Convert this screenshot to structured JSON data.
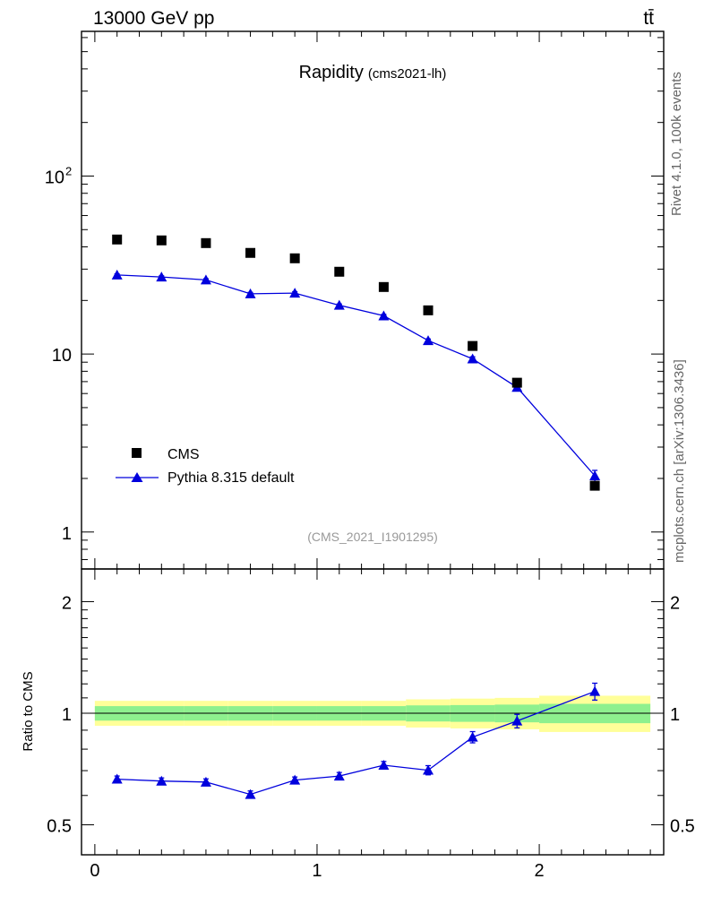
{
  "header": {
    "energy_label": "13000 GeV pp",
    "process_label": "tt̄"
  },
  "side_labels": {
    "rivet": "Rivet 4.1.0,  100k events",
    "source": "mcplots.cern.ch [arXiv:1306.3436]"
  },
  "colors": {
    "cms": "#000000",
    "pythia": "#0000dd",
    "band_inner": "#8ef08e",
    "band_outer": "#ffff99"
  },
  "chart_data": [
    {
      "type": "scatter",
      "panel": "main",
      "title": "Rapidity",
      "subtitle": "(cms2021-lh)",
      "reference": "(CMS_2021_I1901295)",
      "yscale": "log",
      "xlim": [
        -0.06,
        2.56
      ],
      "ylim": [
        0.62,
        650
      ],
      "ytick_labels": [
        {
          "value": 1,
          "label": "1"
        },
        {
          "value": 10,
          "label": "10"
        },
        {
          "value": 100,
          "label": "10",
          "sup": "2"
        }
      ],
      "legend": {
        "position": "bottom-left",
        "entries": [
          "CMS",
          "Pythia 8.315 default"
        ]
      },
      "series": [
        {
          "name": "CMS",
          "style": "markers",
          "x": [
            0.1,
            0.3,
            0.5,
            0.7,
            0.9,
            1.1,
            1.3,
            1.5,
            1.7,
            1.9,
            2.25
          ],
          "y": [
            44.0,
            43.5,
            42.0,
            37.0,
            34.5,
            29.0,
            23.8,
            17.6,
            11.1,
            6.9,
            1.82
          ]
        },
        {
          "name": "Pythia 8.315 default",
          "style": "line+markers",
          "x": [
            0.1,
            0.3,
            0.5,
            0.7,
            0.9,
            1.1,
            1.3,
            1.5,
            1.7,
            1.9,
            2.25
          ],
          "y": [
            27.8,
            27.1,
            26.1,
            21.8,
            22.0,
            18.8,
            16.4,
            11.9,
            9.4,
            6.5,
            2.07
          ],
          "yerr": [
            0.4,
            0.4,
            0.4,
            0.4,
            0.4,
            0.3,
            0.3,
            0.25,
            0.25,
            0.25,
            0.15
          ]
        }
      ]
    },
    {
      "type": "line",
      "panel": "ratio",
      "ylabel": "Ratio to CMS",
      "yscale": "log",
      "xlim": [
        -0.06,
        2.56
      ],
      "ylim": [
        0.415,
        2.45
      ],
      "xtick_labels": [
        {
          "value": 0,
          "label": "0"
        },
        {
          "value": 1,
          "label": "1"
        },
        {
          "value": 2,
          "label": "2"
        }
      ],
      "ytick_labels": [
        {
          "value": 0.5,
          "label": "0.5"
        },
        {
          "value": 1,
          "label": "1"
        },
        {
          "value": 2,
          "label": "2"
        }
      ],
      "reference_band": {
        "x_edges": [
          0,
          0.2,
          0.4,
          0.6,
          0.8,
          1.0,
          1.2,
          1.4,
          1.6,
          1.8,
          2.0,
          2.5
        ],
        "inner": [
          [
            0.955,
            1.045
          ],
          [
            0.955,
            1.045
          ],
          [
            0.955,
            1.045
          ],
          [
            0.955,
            1.045
          ],
          [
            0.955,
            1.045
          ],
          [
            0.955,
            1.045
          ],
          [
            0.955,
            1.045
          ],
          [
            0.95,
            1.05
          ],
          [
            0.948,
            1.052
          ],
          [
            0.945,
            1.055
          ],
          [
            0.94,
            1.06
          ]
        ],
        "outer": [
          [
            0.925,
            1.08
          ],
          [
            0.925,
            1.08
          ],
          [
            0.925,
            1.08
          ],
          [
            0.925,
            1.08
          ],
          [
            0.925,
            1.08
          ],
          [
            0.925,
            1.08
          ],
          [
            0.925,
            1.08
          ],
          [
            0.915,
            1.09
          ],
          [
            0.91,
            1.095
          ],
          [
            0.905,
            1.1
          ],
          [
            0.89,
            1.115
          ]
        ]
      },
      "series": [
        {
          "name": "Pythia 8.315 default",
          "x": [
            0.1,
            0.3,
            0.5,
            0.7,
            0.9,
            1.1,
            1.3,
            1.5,
            1.7,
            1.9,
            2.25
          ],
          "y": [
            0.664,
            0.656,
            0.652,
            0.604,
            0.66,
            0.677,
            0.724,
            0.702,
            0.862,
            0.953,
            1.145
          ],
          "yerr": [
            0.013,
            0.013,
            0.013,
            0.013,
            0.013,
            0.015,
            0.017,
            0.02,
            0.03,
            0.04,
            0.06
          ]
        }
      ]
    }
  ]
}
